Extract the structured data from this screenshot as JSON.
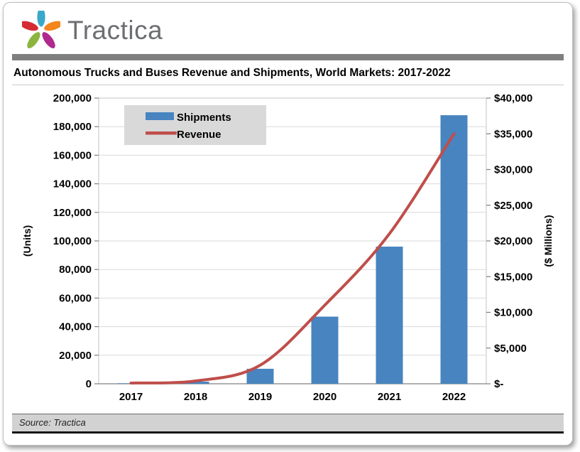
{
  "brand": {
    "wordmark": "Tractica",
    "wordmark_color": "#6d6e71",
    "logo_petal_colors": {
      "top": "#3aa8c9",
      "right": "#f3861d",
      "bottom_right": "#b0298c",
      "bottom_left": "#8bb53e",
      "left": "#d62b33"
    }
  },
  "title": "Autonomous Trucks and Buses Revenue and Shipments, World Markets: 2017-2022",
  "source": "Source: Tractica",
  "chart_data": {
    "type": "bar",
    "subtype": "combo-bar-line-dual-axis",
    "categories": [
      "2017",
      "2018",
      "2019",
      "2020",
      "2021",
      "2022"
    ],
    "series": [
      {
        "name": "Shipments",
        "kind": "bar",
        "axis": "left",
        "color": "#4784c0",
        "values": [
          350,
          1500,
          10500,
          47000,
          96000,
          188000
        ]
      },
      {
        "name": "Revenue",
        "kind": "line",
        "axis": "right",
        "color": "#bf4e4a",
        "values": [
          100,
          400,
          2600,
          11000,
          21000,
          35000
        ]
      }
    ],
    "left_axis": {
      "label": "(Units)",
      "min": 0,
      "max": 200000,
      "step": 20000,
      "tick_labels": [
        "0",
        "20,000",
        "40,000",
        "60,000",
        "80,000",
        "100,000",
        "120,000",
        "140,000",
        "160,000",
        "180,000",
        "200,000"
      ]
    },
    "right_axis": {
      "label": "($ Millions)",
      "min": 0,
      "max": 40000,
      "step": 5000,
      "tick_labels": [
        "$-",
        "$5,000",
        "$10,000",
        "$15,000",
        "$20,000",
        "$25,000",
        "$30,000",
        "$35,000",
        "$40,000"
      ]
    },
    "legend": {
      "position": "top-left-inside",
      "background": "#d9d9d9",
      "entries": [
        "Shipments",
        "Revenue"
      ]
    },
    "grid": true,
    "gridline_color": "#d9d9d9",
    "plot_border_color": "#c3c3c3",
    "axis_line_color": "#808080"
  }
}
